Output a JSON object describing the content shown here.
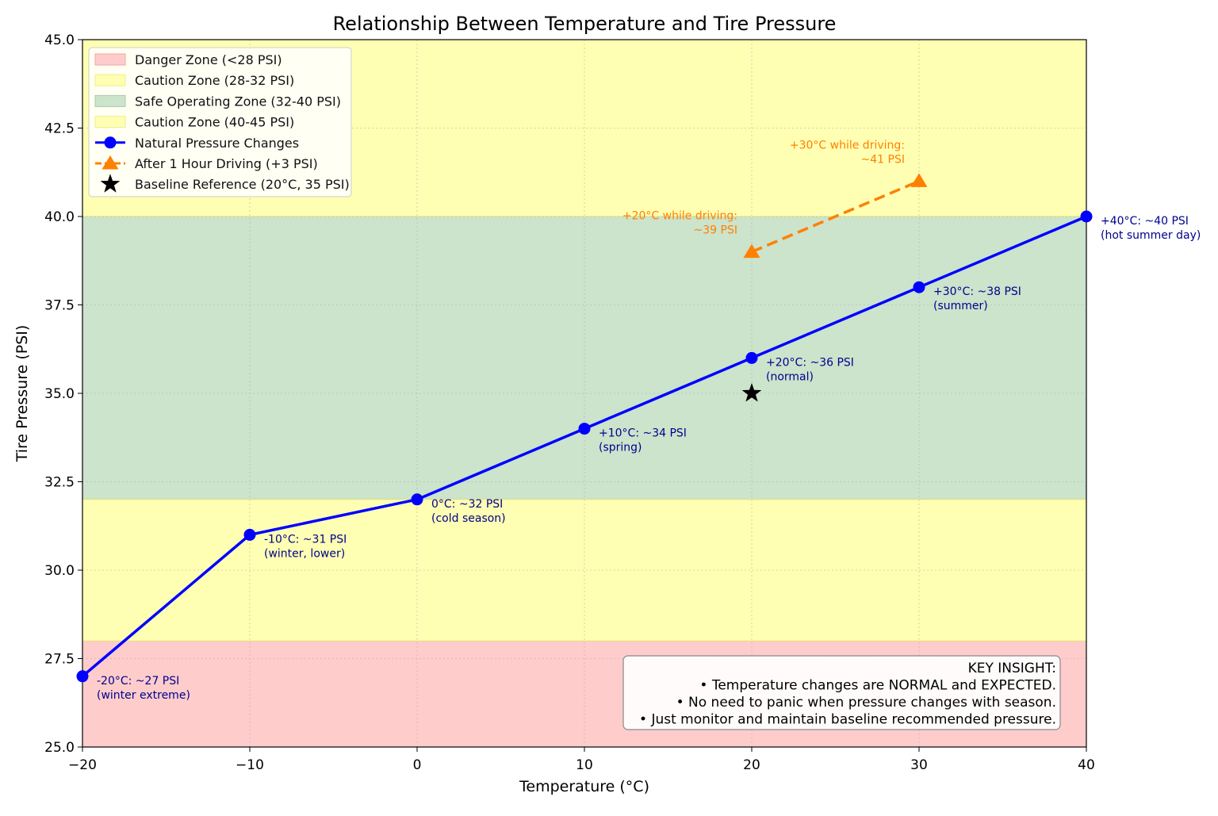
{
  "chart_data": {
    "type": "line",
    "title": "Relationship Between Temperature and Tire Pressure",
    "xlabel": "Temperature (°C)",
    "ylabel": "Tire Pressure (PSI)",
    "xlim": [
      -20,
      40
    ],
    "ylim": [
      25,
      45
    ],
    "x_ticks": [
      -20,
      -10,
      0,
      10,
      20,
      30,
      40
    ],
    "x_tick_labels": [
      "−20",
      "−10",
      "0",
      "10",
      "20",
      "30",
      "40"
    ],
    "y_ticks": [
      25,
      27.5,
      30,
      32.5,
      35,
      37.5,
      40,
      42.5,
      45
    ],
    "y_tick_labels": [
      "25.0",
      "27.5",
      "30.0",
      "32.5",
      "35.0",
      "37.5",
      "40.0",
      "42.5",
      "45.0"
    ],
    "grid": true,
    "legend_position": "top-left",
    "zones": [
      {
        "name": "Danger Zone (<28 PSI)",
        "y0": 25,
        "y1": 28,
        "color": "#ffcccc"
      },
      {
        "name": "Caution Zone (28-32 PSI)",
        "y0": 28,
        "y1": 32,
        "color": "#ffffb3"
      },
      {
        "name": "Safe Operating Zone (32-40 PSI)",
        "y0": 32,
        "y1": 40,
        "color": "#cce3cc"
      },
      {
        "name": "Caution Zone (40-45 PSI)",
        "y0": 40,
        "y1": 45,
        "color": "#ffffb3"
      }
    ],
    "series": [
      {
        "name": "Natural Pressure Changes",
        "color": "#0000ff",
        "marker": "circle",
        "x": [
          -20,
          -10,
          0,
          10,
          20,
          30,
          40
        ],
        "y": [
          27,
          31,
          32,
          34,
          36,
          38,
          40
        ],
        "labels": [
          [
            "-20°C: ~27 PSI",
            "(winter extreme)"
          ],
          [
            "-10°C: ~31 PSI",
            "(winter, lower)"
          ],
          [
            "0°C: ~32 PSI",
            "(cold season)"
          ],
          [
            "+10°C: ~34 PSI",
            "(spring)"
          ],
          [
            "+20°C: ~36 PSI",
            "(normal)"
          ],
          [
            "+30°C: ~38 PSI",
            "(summer)"
          ],
          [
            "+40°C: ~40 PSI",
            "(hot summer day)"
          ]
        ]
      },
      {
        "name": "After 1 Hour Driving (+3 PSI)",
        "color": "#ff8000",
        "marker": "triangle",
        "dashed": true,
        "x": [
          20,
          30
        ],
        "y": [
          39,
          41
        ],
        "labels": [
          [
            "+20°C while driving:",
            "~39 PSI"
          ],
          [
            "+30°C while driving:",
            "~41 PSI"
          ]
        ]
      },
      {
        "name": "Baseline Reference (20°C, 35 PSI)",
        "color": "#000000",
        "marker": "star",
        "x": [
          20
        ],
        "y": [
          35
        ]
      }
    ],
    "insight": {
      "lines": [
        "KEY INSIGHT:",
        "• Temperature changes are NORMAL and EXPECTED.",
        "• No need to panic when pressure changes with season.",
        "• Just monitor and maintain baseline recommended pressure."
      ]
    }
  }
}
